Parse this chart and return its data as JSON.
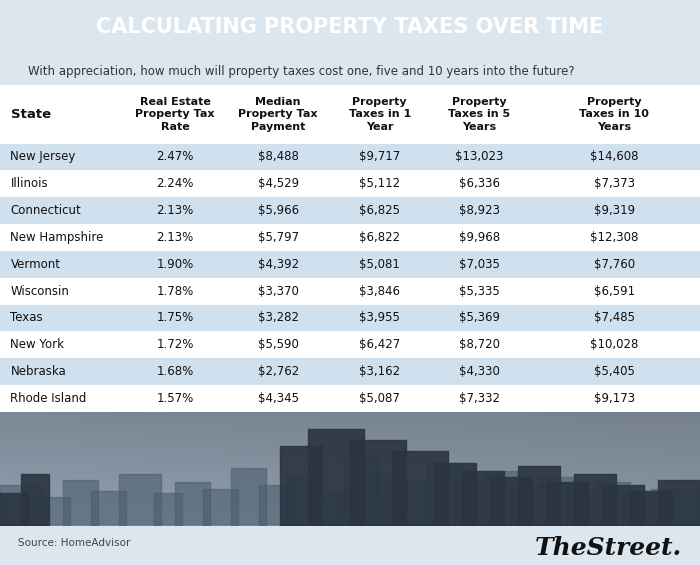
{
  "title": "CALCULATING PROPERTY TAXES OVER TIME",
  "subtitle": "With appreciation, how much will property taxes cost one, five and 10 years into the future?",
  "title_bg": "#111111",
  "title_color": "#ffffff",
  "subtitle_color": "#333333",
  "col_headers": [
    "State",
    "Real Estate\nProperty Tax\nRate",
    "Median\nProperty Tax\nPayment",
    "Property\nTaxes in 1\nYear",
    "Property\nTaxes in 5\nYears",
    "Property\nTaxes in 10\nYears"
  ],
  "rows": [
    [
      "New Jersey",
      "2.47%",
      "$8,488",
      "$9,717",
      "$13,023",
      "$14,608"
    ],
    [
      "Illinois",
      "2.24%",
      "$4,529",
      "$5,112",
      "$6,336",
      "$7,373"
    ],
    [
      "Connecticut",
      "2.13%",
      "$5,966",
      "$6,825",
      "$8,923",
      "$9,319"
    ],
    [
      "New Hampshire",
      "2.13%",
      "$5,797",
      "$6,822",
      "$9,968",
      "$12,308"
    ],
    [
      "Vermont",
      "1.90%",
      "$4,392",
      "$5,081",
      "$7,035",
      "$7,760"
    ],
    [
      "Wisconsin",
      "1.78%",
      "$3,370",
      "$3,846",
      "$5,335",
      "$6,591"
    ],
    [
      "Texas",
      "1.75%",
      "$3,282",
      "$3,955",
      "$5,369",
      "$7,485"
    ],
    [
      "New York",
      "1.72%",
      "$5,590",
      "$6,427",
      "$8,720",
      "$10,028"
    ],
    [
      "Nebraska",
      "1.68%",
      "$2,762",
      "$3,162",
      "$4,330",
      "$5,405"
    ],
    [
      "Rhode Island",
      "1.57%",
      "$4,345",
      "$5,087",
      "$7,332",
      "$9,173"
    ]
  ],
  "row_shaded": [
    true,
    false,
    true,
    false,
    true,
    false,
    true,
    false,
    true,
    false
  ],
  "shaded_color": "#cfe0ef",
  "unshaded_color": "#ffffff",
  "header_bg": "#ffffff",
  "source_text": "Source: HomeAdvisor",
  "brand_text": "TheStreet.",
  "fig_bg": "#dce6ee",
  "table_bg": "#ffffff",
  "footer_bg": "#ffffff",
  "skyline_bg": "#b8cad6"
}
